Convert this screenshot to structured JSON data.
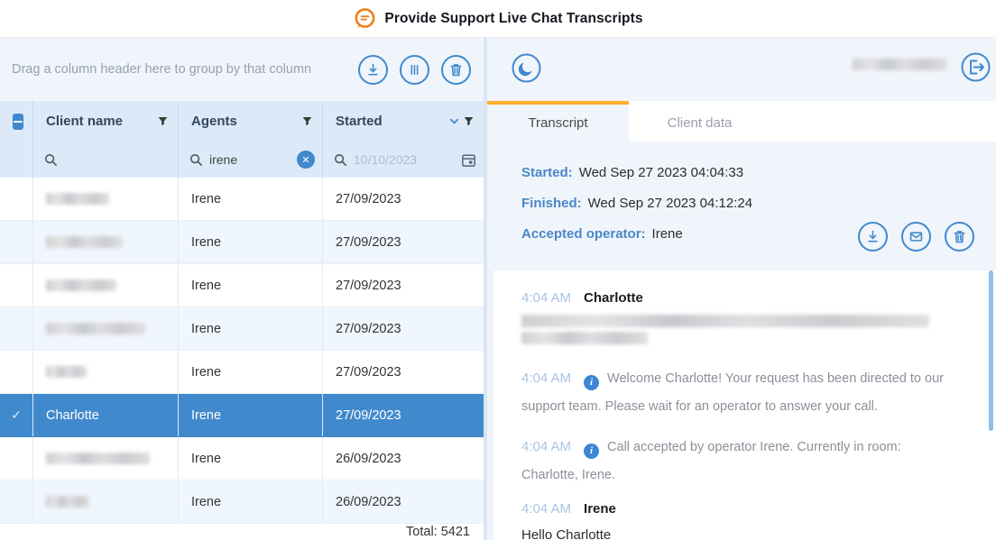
{
  "colors": {
    "accent_blue": "#4189cd",
    "accent_orange": "#ffae2f",
    "logo_orange": "#f08019",
    "panel_bg": "#f0f5fb",
    "grid_header_bg": "#dce9f8",
    "alt_row_bg": "#f0f6fd",
    "selected_row_bg": "#4189cd",
    "label_blue": "#4a86c7",
    "time_blue": "#a9c4e4"
  },
  "app": {
    "title": "Provide Support Live Chat Transcripts",
    "logo_icon": "chat-bubble-logo-icon"
  },
  "grid": {
    "group_hint": "Drag a column header here to group by that column",
    "toolbar_icons": [
      "download-icon",
      "columns-icon",
      "trash-icon"
    ],
    "select_all_state": "indeterminate",
    "columns": [
      {
        "label": "Client name",
        "filter_icon": "funnel-icon"
      },
      {
        "label": "Agents",
        "filter_icon": "funnel-icon"
      },
      {
        "label": "Started",
        "sort": "desc",
        "filter_icon": "funnel-icon"
      }
    ],
    "filters": {
      "client_name": {
        "value": "",
        "placeholder": ""
      },
      "agents": {
        "value": "irene",
        "clear_icon": "clear-circle-icon"
      },
      "started": {
        "value": "",
        "placeholder": "10/10/2023",
        "calendar_icon": "calendar-icon"
      }
    },
    "rows": [
      {
        "client": null,
        "redacted": true,
        "redact_width": 70,
        "agent": "Irene",
        "started": "27/09/2023",
        "selected": false
      },
      {
        "client": null,
        "redacted": true,
        "redact_width": 85,
        "agent": "Irene",
        "started": "27/09/2023",
        "selected": false
      },
      {
        "client": null,
        "redacted": true,
        "redact_width": 78,
        "agent": "Irene",
        "started": "27/09/2023",
        "selected": false
      },
      {
        "client": null,
        "redacted": true,
        "redact_width": 110,
        "agent": "Irene",
        "started": "27/09/2023",
        "selected": false
      },
      {
        "client": null,
        "redacted": true,
        "redact_width": 45,
        "agent": "Irene",
        "started": "27/09/2023",
        "selected": false
      },
      {
        "client": "Charlotte",
        "redacted": false,
        "agent": "Irene",
        "started": "27/09/2023",
        "selected": true
      },
      {
        "client": null,
        "redacted": true,
        "redact_width": 115,
        "agent": "Irene",
        "started": "26/09/2023",
        "selected": false
      },
      {
        "client": null,
        "redacted": true,
        "redact_width": 48,
        "agent": "Irene",
        "started": "26/09/2023",
        "selected": false
      }
    ],
    "total": "Total: 5421"
  },
  "panel": {
    "top_icons": {
      "left": "moon-icon",
      "right": "logout-icon",
      "user_name_redacted": true
    },
    "tabs": [
      {
        "label": "Transcript",
        "active": true
      },
      {
        "label": "Client data",
        "active": false
      }
    ],
    "meta": {
      "started_label": "Started:",
      "started_value": "Wed Sep 27 2023 04:04:33",
      "finished_label": "Finished:",
      "finished_value": "Wed Sep 27 2023 04:12:24",
      "operator_label": "Accepted operator:",
      "operator_value": "Irene",
      "action_icons": [
        "download-icon",
        "mail-icon",
        "trash-icon"
      ]
    },
    "messages": [
      {
        "type": "user",
        "time": "4:04 AM",
        "sender": "Charlotte",
        "redacted": true,
        "redact_lines": [
          452,
          140
        ]
      },
      {
        "type": "system",
        "time": "4:04 AM",
        "text": "Welcome Charlotte! Your request has been directed to our support team. Please wait for an operator to answer your call."
      },
      {
        "type": "system",
        "time": "4:04 AM",
        "text": "Call accepted by operator Irene. Currently in room: Charlotte, Irene."
      },
      {
        "type": "user",
        "time": "4:04 AM",
        "sender": "Irene",
        "redacted": false,
        "text": "Hello Charlotte"
      }
    ]
  }
}
